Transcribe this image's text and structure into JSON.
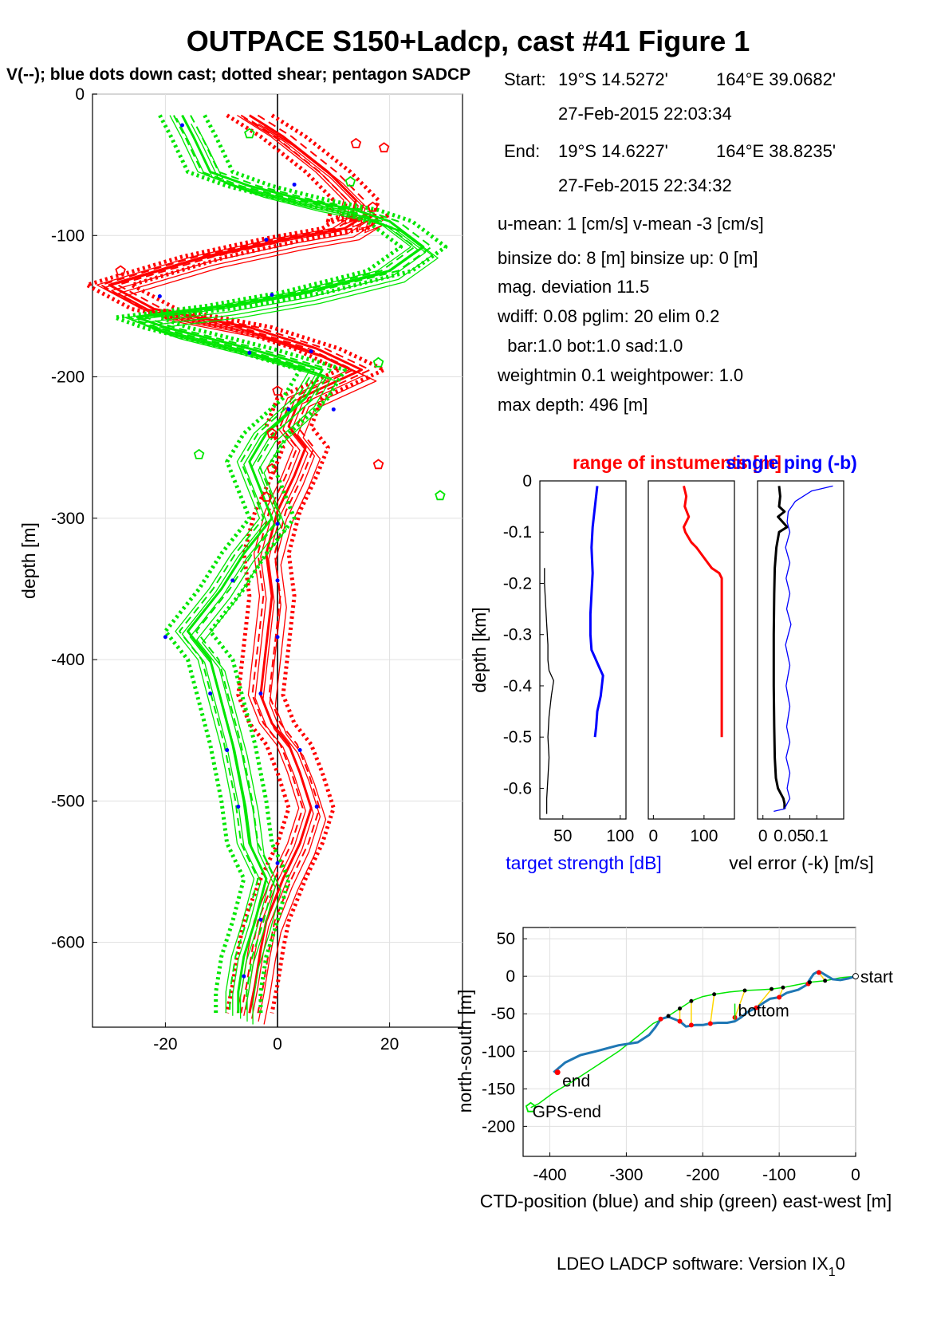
{
  "figure": {
    "title": "OUTPACE S150+Ladcp, cast #41  Figure 1",
    "subtitle": "V(--); blue dots down cast; dotted shear; pentagon SADCP",
    "footer": "LDEO LADCP software: Version IX",
    "footer_sub": "1",
    "footer_tail": "0"
  },
  "info": {
    "start_label": "Start:",
    "start_lat": "19°S 14.5272'",
    "start_lon": "164°E 39.0682'",
    "start_time": "27-Feb-2015 22:03:34",
    "end_label": "End:",
    "end_lat": "19°S 14.6227'",
    "end_lon": "164°E 38.8235'",
    "end_time": "27-Feb-2015 22:34:32",
    "umean": "u-mean:   1 [cm/s]    v-mean  -3 [cm/s]",
    "binsize": "binsize do: 8 [m]  binsize up:  0 [m]",
    "magdev": "mag. deviation 11.5",
    "wdiff": "wdiff: 0.08  pglim: 20  elim 0.2",
    "bar": "  bar:1.0 bot:1.0 sad:1.0",
    "weight": "weightmin 0.1  weightpower: 1.0",
    "maxdepth": "max depth: 496 [m]"
  },
  "colors": {
    "red": "#ff0000",
    "green": "#00e600",
    "blue": "#0000ff",
    "ctd_blue": "#1f77b4",
    "yellow": "#ffd700",
    "black": "#000000"
  },
  "chart_data": [
    {
      "id": "velocity_profile",
      "type": "line",
      "ylabel": "depth [m]",
      "xlabel": "",
      "xlim": [
        -33,
        33
      ],
      "ylim": [
        -660,
        0
      ],
      "xticks": [
        -20,
        0,
        20
      ],
      "yticks": [
        0,
        -100,
        -200,
        -300,
        -400,
        -500,
        -600
      ],
      "ytick_labels": [
        "0",
        "-100",
        "-200",
        "-300",
        "-400",
        "-500",
        "-600"
      ],
      "grid": true,
      "series": [
        {
          "color": "red",
          "x": [
            -5,
            1,
            9,
            14,
            13,
            16,
            12,
            2,
            -13,
            -30,
            -22,
            -5,
            7,
            15,
            4,
            2,
            5,
            3,
            0,
            -2,
            -1,
            -2,
            -3,
            -1,
            2,
            4,
            6,
            4,
            1,
            -2,
            -3,
            -4,
            -5
          ],
          "y": [
            -15,
            -30,
            -55,
            -75,
            -90,
            -85,
            -95,
            -102,
            -115,
            -135,
            -152,
            -165,
            -180,
            -195,
            -215,
            -235,
            -250,
            -270,
            -295,
            -325,
            -355,
            -390,
            -425,
            -445,
            -460,
            -480,
            -505,
            -530,
            -555,
            -585,
            -605,
            -630,
            -650
          ]
        },
        {
          "color": "green",
          "x": [
            -17,
            -15,
            -12,
            -5,
            5,
            14,
            20,
            26,
            20,
            5,
            -9,
            -25,
            -20,
            -5,
            8,
            5,
            -2,
            -5,
            -3,
            -1,
            -6,
            -10,
            -16,
            -12,
            -10,
            -8,
            -6,
            -5,
            -2,
            -4,
            -6,
            -7,
            -7
          ],
          "y": [
            -15,
            -30,
            -55,
            -65,
            -75,
            -82,
            -90,
            -108,
            -125,
            -140,
            -150,
            -158,
            -165,
            -180,
            -195,
            -215,
            -240,
            -260,
            -280,
            -300,
            -325,
            -350,
            -380,
            -400,
            -430,
            -460,
            -500,
            -530,
            -555,
            -585,
            -610,
            -635,
            -650
          ]
        }
      ],
      "blue_dots": {
        "x": [
          -17,
          3,
          -2,
          -21,
          -1,
          -5,
          6,
          10,
          2,
          0,
          0,
          -8,
          0,
          -20,
          -3,
          -12,
          4,
          -9,
          7,
          -7,
          0,
          -3,
          -6
        ],
        "y": [
          -22,
          -64,
          -103,
          -143,
          -142,
          -183,
          -182,
          -223,
          -223,
          -304,
          -344,
          -344,
          -384,
          -384,
          -424,
          -424,
          -464,
          -464,
          -504,
          -504,
          -544,
          -584,
          -624
        ]
      },
      "sadcp_markers": {
        "x": [
          -5,
          14,
          19,
          13,
          17,
          -28,
          18,
          0,
          -1,
          -14,
          -1,
          18,
          29,
          -2
        ],
        "y": [
          -28,
          -35,
          -38,
          -62,
          -80,
          -125,
          -190,
          -210,
          -240,
          -255,
          -265,
          -262,
          -284,
          -285
        ]
      }
    },
    {
      "id": "target_strength",
      "type": "line",
      "ylabel": "depth [km]",
      "xlabel": "target strength [dB]",
      "title": "range of instuments [m]",
      "ylim": [
        -0.66,
        0
      ],
      "xlim": [
        30,
        105
      ],
      "xticks": [
        50,
        100
      ],
      "xtick_labels": [
        "50",
        "100"
      ],
      "yticks": [
        0,
        -0.1,
        -0.2,
        -0.3,
        -0.4,
        -0.5,
        -0.6
      ],
      "ytick_labels": [
        "0",
        "-0.1",
        "-0.2",
        "-0.3",
        "-0.4",
        "-0.5",
        "-0.6"
      ],
      "series": [
        {
          "color": "blue",
          "x": [
            80,
            78,
            76,
            75,
            76,
            75,
            74,
            74,
            75,
            77,
            81,
            85,
            83,
            80,
            79,
            78
          ],
          "y": [
            -0.01,
            -0.05,
            -0.09,
            -0.13,
            -0.18,
            -0.22,
            -0.26,
            -0.3,
            -0.33,
            -0.34,
            -0.36,
            -0.38,
            -0.42,
            -0.45,
            -0.48,
            -0.5
          ]
        },
        {
          "color": "black",
          "x": [
            34,
            34,
            35,
            36,
            37,
            37,
            38,
            40,
            42,
            40,
            38,
            37,
            38,
            37,
            36,
            36
          ],
          "y": [
            -0.17,
            -0.2,
            -0.24,
            -0.28,
            -0.32,
            -0.35,
            -0.37,
            -0.38,
            -0.39,
            -0.42,
            -0.46,
            -0.5,
            -0.54,
            -0.58,
            -0.62,
            -0.65
          ]
        }
      ]
    },
    {
      "id": "instrument_range",
      "type": "line",
      "xlim": [
        -10,
        160
      ],
      "ylim": [
        -0.66,
        0
      ],
      "xticks": [
        0,
        100
      ],
      "xtick_labels": [
        "0",
        "100"
      ],
      "series": [
        {
          "color": "red",
          "x": [
            60,
            65,
            62,
            70,
            60,
            63,
            75,
            85,
            100,
            115,
            130,
            135,
            135,
            135
          ],
          "y": [
            -0.01,
            -0.03,
            -0.05,
            -0.07,
            -0.09,
            -0.1,
            -0.12,
            -0.13,
            -0.15,
            -0.17,
            -0.18,
            -0.19,
            -0.35,
            -0.5
          ]
        }
      ]
    },
    {
      "id": "velocity_error",
      "type": "line",
      "title": "single ping (-b)",
      "xlabel": "vel error (-k) [m/s]",
      "xlim": [
        -0.01,
        0.15
      ],
      "ylim": [
        -0.66,
        0
      ],
      "xticks": [
        0,
        0.05,
        0.1
      ],
      "xtick_labels": [
        "0",
        "0.05",
        "0.1"
      ],
      "series": [
        {
          "color": "black",
          "x": [
            0.03,
            0.032,
            0.03,
            0.04,
            0.028,
            0.045,
            0.03,
            0.025,
            0.022,
            0.021,
            0.02,
            0.02,
            0.021,
            0.022,
            0.024,
            0.028,
            0.033,
            0.038,
            0.04,
            0.04
          ],
          "y": [
            -0.01,
            -0.03,
            -0.05,
            -0.06,
            -0.07,
            -0.09,
            -0.1,
            -0.13,
            -0.17,
            -0.22,
            -0.3,
            -0.4,
            -0.48,
            -0.54,
            -0.58,
            -0.6,
            -0.61,
            -0.62,
            -0.63,
            -0.64
          ]
        },
        {
          "color": "blue",
          "x": [
            0.13,
            0.09,
            0.06,
            0.047,
            0.045,
            0.05,
            0.042,
            0.05,
            0.043,
            0.05,
            0.044,
            0.052,
            0.042,
            0.05,
            0.043,
            0.05,
            0.044,
            0.05,
            0.043,
            0.05,
            0.045,
            0.05,
            0.045,
            0.04,
            0.02
          ],
          "y": [
            -0.01,
            -0.02,
            -0.04,
            -0.06,
            -0.08,
            -0.1,
            -0.13,
            -0.16,
            -0.19,
            -0.22,
            -0.25,
            -0.28,
            -0.32,
            -0.36,
            -0.4,
            -0.44,
            -0.48,
            -0.51,
            -0.54,
            -0.57,
            -0.6,
            -0.62,
            -0.63,
            -0.64,
            -0.645
          ]
        }
      ]
    },
    {
      "id": "position",
      "type": "line",
      "xlabel": "CTD-position (blue) and ship (green) east-west [m]",
      "ylabel": "north-south [m]",
      "xlim": [
        -435,
        0
      ],
      "ylim": [
        -240,
        65
      ],
      "xticks": [
        -400,
        -300,
        -200,
        -100,
        0
      ],
      "xtick_labels": [
        "-400",
        "-300",
        "-200",
        "-100",
        "0"
      ],
      "yticks": [
        50,
        0,
        -50,
        -100,
        -150,
        -200
      ],
      "ytick_labels": [
        "50",
        "0",
        "-50",
        "-100",
        "-150",
        "-200"
      ],
      "series": [
        {
          "color": "ctd_blue",
          "x": [
            0,
            -10,
            -20,
            -30,
            -40,
            -48,
            -55,
            -65,
            -75,
            -90,
            -100,
            -112,
            -120,
            -130,
            -142,
            -150,
            -158,
            -168,
            -180,
            -190,
            -200,
            -210,
            -222,
            -230,
            -245,
            -255,
            -262,
            -270,
            -285,
            -310,
            -340,
            -360,
            -380,
            -395
          ],
          "y": [
            0,
            -3,
            -5,
            -4,
            2,
            7,
            3,
            -12,
            -18,
            -22,
            -28,
            -30,
            -35,
            -42,
            -48,
            -55,
            -60,
            -62,
            -62,
            -63,
            -65,
            -65,
            -67,
            -60,
            -54,
            -57,
            -68,
            -78,
            -88,
            -92,
            -100,
            -105,
            -115,
            -128
          ]
        },
        {
          "color": "green",
          "x": [
            0,
            -20,
            -40,
            -60,
            -80,
            -95,
            -110,
            -125,
            -145,
            -165,
            -185,
            -200,
            -215,
            -230,
            -245,
            -265,
            -285,
            -310,
            -340,
            -370,
            -395,
            -415,
            -425
          ],
          "y": [
            0,
            -2,
            -6,
            -8,
            -12,
            -15,
            -17,
            -18,
            -19,
            -21,
            -24,
            -27,
            -33,
            -43,
            -53,
            -63,
            -80,
            -100,
            -120,
            -140,
            -155,
            -170,
            -175
          ]
        }
      ],
      "annotations": [
        "start",
        "bottom",
        "end",
        "GPS-end"
      ],
      "markers": {
        "start_x": 0,
        "start_y": 0,
        "bottom_x": -158,
        "bottom_y": -45,
        "end_x": -390,
        "end_y": -128,
        "gps_end_x": -425,
        "gps_end_y": -175
      },
      "link_points": {
        "ctd_x": [
          -48,
          -62,
          -100,
          -130,
          -158,
          -190,
          -215,
          -230,
          -255
        ],
        "ctd_y": [
          5,
          -10,
          -28,
          -42,
          -55,
          -63,
          -65,
          -60,
          -57
        ],
        "ship_x": [
          -35,
          -55,
          -90,
          -110,
          -140,
          -185,
          -210,
          -225,
          -245
        ]
      }
    }
  ]
}
